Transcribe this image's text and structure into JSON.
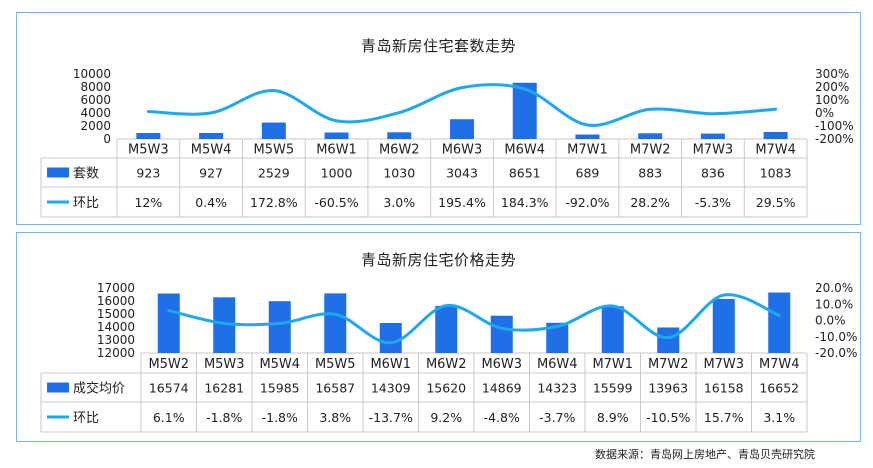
{
  "source_note": "数据来源：青岛网上房地产、青岛贝壳研究院",
  "colors": {
    "bar": "#1f6fe6",
    "line": "#1ea8ee",
    "border": "#7ab4ee",
    "grid": "#c9c9c9"
  },
  "chart_data": [
    {
      "type": "bar",
      "title": "青岛新房住宅套数走势",
      "categories": [
        "M5W3",
        "M5W4",
        "M5W5",
        "M6W1",
        "M6W2",
        "M6W3",
        "M6W4",
        "M7W1",
        "M7W2",
        "M7W3",
        "M7W4"
      ],
      "series": [
        {
          "name": "套数",
          "kind": "bar",
          "axis": "left",
          "values": [
            923,
            927,
            2529,
            1000,
            1030,
            3043,
            8651,
            689,
            883,
            836,
            1083
          ],
          "labels": [
            "923",
            "927",
            "2529",
            "1000",
            "1030",
            "3043",
            "8651",
            "689",
            "883",
            "836",
            "1083"
          ]
        },
        {
          "name": "环比",
          "kind": "line",
          "axis": "right",
          "values": [
            12,
            0.4,
            172.8,
            -60.5,
            3.0,
            195.4,
            184.3,
            -92.0,
            28.2,
            -5.3,
            29.5
          ],
          "labels": [
            "12%",
            "0.4%",
            "172.8%",
            "-60.5%",
            "3.0%",
            "195.4%",
            "184.3%",
            "-92.0%",
            "28.2%",
            "-5.3%",
            "29.5%"
          ]
        }
      ],
      "y_left": {
        "range": [
          0,
          10000
        ],
        "ticks": [
          "0",
          "2000",
          "4000",
          "6000",
          "8000",
          "10000"
        ]
      },
      "y_right": {
        "range": [
          -200,
          300
        ],
        "ticks": [
          "-200%",
          "-100%",
          "0%",
          "100%",
          "200%",
          "300%"
        ]
      },
      "legend": "data-table"
    },
    {
      "type": "bar",
      "title": "青岛新房住宅价格走势",
      "categories": [
        "M5W2",
        "M5W3",
        "M5W4",
        "M5W5",
        "M6W1",
        "M6W2",
        "M6W3",
        "M6W4",
        "M7W1",
        "M7W2",
        "M7W3",
        "M7W4"
      ],
      "series": [
        {
          "name": "成交均价",
          "kind": "bar",
          "axis": "left",
          "values": [
            16574,
            16281,
            15985,
            16587,
            14309,
            15620,
            14869,
            14323,
            15599,
            13963,
            16158,
            16652
          ],
          "labels": [
            "16574",
            "16281",
            "15985",
            "16587",
            "14309",
            "15620",
            "14869",
            "14323",
            "15599",
            "13963",
            "16158",
            "16652"
          ]
        },
        {
          "name": "环比",
          "kind": "line",
          "axis": "right",
          "values": [
            6.1,
            -1.8,
            -1.8,
            3.8,
            -13.7,
            9.2,
            -4.8,
            -3.7,
            8.9,
            -10.5,
            15.7,
            3.1
          ],
          "labels": [
            "6.1%",
            "-1.8%",
            "-1.8%",
            "3.8%",
            "-13.7%",
            "9.2%",
            "-4.8%",
            "-3.7%",
            "8.9%",
            "-10.5%",
            "15.7%",
            "3.1%"
          ]
        }
      ],
      "y_left": {
        "range": [
          12000,
          17000
        ],
        "ticks": [
          "12000",
          "13000",
          "14000",
          "15000",
          "16000",
          "17000"
        ]
      },
      "y_right": {
        "range": [
          -20,
          20
        ],
        "ticks": [
          "-20.0%",
          "-10.0%",
          "0.0%",
          "10.0%",
          "20.0%"
        ]
      },
      "legend": "data-table"
    }
  ]
}
